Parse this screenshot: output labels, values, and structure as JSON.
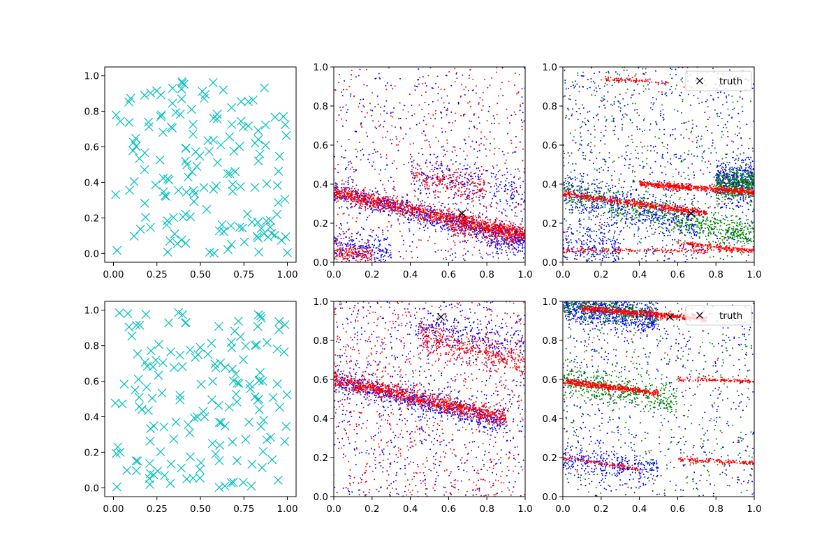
{
  "colors": {
    "cyan": "#00bfbf",
    "red": "#ff0000",
    "blue": "#0000ff",
    "green": "#008000",
    "truth": "#000000",
    "axes": "#000000",
    "background": "#ffffff"
  },
  "chart_data": [
    {
      "id": "top-left",
      "type": "scatter",
      "title": "",
      "xlabel": "",
      "ylabel": "",
      "xlim": [
        -0.05,
        1.05
      ],
      "ylim": [
        -0.05,
        1.05
      ],
      "xticks": [
        0.0,
        0.25,
        0.5,
        0.75,
        1.0
      ],
      "xtick_labels": [
        "0.00",
        "0.25",
        "0.50",
        "0.75",
        "1.00"
      ],
      "yticks": [
        0.0,
        0.2,
        0.4,
        0.6,
        0.8,
        1.0
      ],
      "ytick_labels": [
        "0.0",
        "0.2",
        "0.4",
        "0.6",
        "0.8",
        "1.0"
      ],
      "grid": false,
      "marker": "x",
      "series": [
        {
          "color": "cyan",
          "count": 160,
          "distribution": "uniform"
        }
      ]
    },
    {
      "id": "top-middle",
      "type": "scatter",
      "title": "",
      "xlabel": "",
      "ylabel": "",
      "xlim": [
        0,
        1
      ],
      "ylim": [
        0,
        1
      ],
      "xticks": [
        0.0,
        0.2,
        0.4,
        0.6,
        0.8,
        1.0
      ],
      "xtick_labels": [
        "0.0",
        "0.2",
        "0.4",
        "0.6",
        "0.8",
        "1.0"
      ],
      "yticks": [
        0.0,
        0.2,
        0.4,
        0.6,
        0.8,
        1.0
      ],
      "ytick_labels": [
        "0.0",
        "0.2",
        "0.4",
        "0.6",
        "0.8",
        "1.0"
      ],
      "grid": false,
      "marker": "dot",
      "truth_point": [
        0.67,
        0.25
      ],
      "series": [
        {
          "color": "blue",
          "bands": [
            {
              "x": [
                0.0,
                1.0
              ],
              "y0": 0.36,
              "slope": -0.25,
              "spread": 0.03,
              "count": 800
            },
            {
              "x": [
                0.0,
                0.3
              ],
              "y0": 0.08,
              "slope": -0.1,
              "spread": 0.05,
              "count": 250
            },
            {
              "x": [
                0.8,
                1.0
              ],
              "y0": 0.12,
              "slope": 0.0,
              "spread": 0.04,
              "count": 120
            },
            {
              "x": [
                0.4,
                1.0
              ],
              "y0": 0.55,
              "slope": -0.2,
              "spread": 0.06,
              "count": 250
            }
          ],
          "background_count": 400
        },
        {
          "color": "red",
          "bands": [
            {
              "x": [
                0.0,
                1.0
              ],
              "y0": 0.36,
              "slope": -0.22,
              "spread": 0.02,
              "count": 1100
            },
            {
              "x": [
                0.6,
                1.0
              ],
              "y0": 0.28,
              "slope": -0.15,
              "spread": 0.03,
              "count": 250
            },
            {
              "x": [
                0.0,
                0.2
              ],
              "y0": 0.05,
              "slope": -0.1,
              "spread": 0.03,
              "count": 150
            },
            {
              "x": [
                0.4,
                0.8
              ],
              "y0": 0.5,
              "slope": -0.15,
              "spread": 0.04,
              "count": 200
            }
          ],
          "background_count": 400
        }
      ]
    },
    {
      "id": "top-right",
      "type": "scatter",
      "title": "",
      "xlabel": "",
      "ylabel": "",
      "xlim": [
        0,
        1
      ],
      "ylim": [
        0,
        1
      ],
      "xticks": [
        0.0,
        0.2,
        0.4,
        0.6,
        0.8,
        1.0
      ],
      "xtick_labels": [
        "0.0",
        "0.2",
        "0.4",
        "0.6",
        "0.8",
        "1.0"
      ],
      "yticks": [
        0.0,
        0.2,
        0.4,
        0.6,
        0.8,
        1.0
      ],
      "ytick_labels": [
        "0.0",
        "0.2",
        "0.4",
        "0.6",
        "0.8",
        "1.0"
      ],
      "grid": false,
      "marker": "dot",
      "truth_point": [
        0.67,
        0.25
      ],
      "legend": {
        "label": "truth",
        "position": "upper right"
      },
      "series": [
        {
          "color": "blue",
          "bands": [
            {
              "x": [
                0.0,
                0.7
              ],
              "y0": 0.36,
              "slope": -0.25,
              "spread": 0.05,
              "count": 450
            },
            {
              "x": [
                0.8,
                1.0
              ],
              "y0": 0.42,
              "slope": 0.0,
              "spread": 0.05,
              "count": 350
            },
            {
              "x": [
                0.0,
                0.3
              ],
              "y0": 0.1,
              "slope": -0.1,
              "spread": 0.06,
              "count": 200
            }
          ],
          "background_count": 700
        },
        {
          "color": "green",
          "bands": [
            {
              "x": [
                0.0,
                1.0
              ],
              "y0": 0.36,
              "slope": -0.22,
              "spread": 0.04,
              "count": 500
            },
            {
              "x": [
                0.8,
                1.0
              ],
              "y0": 0.4,
              "slope": 0.0,
              "spread": 0.04,
              "count": 400
            },
            {
              "x": [
                0.6,
                1.0
              ],
              "y0": 0.25,
              "slope": -0.1,
              "spread": 0.03,
              "count": 150
            }
          ],
          "background_count": 400
        },
        {
          "color": "red",
          "bands": [
            {
              "x": [
                0.0,
                0.75
              ],
              "y0": 0.35,
              "slope": -0.13,
              "spread": 0.008,
              "count": 500
            },
            {
              "x": [
                0.4,
                1.0
              ],
              "y0": 0.43,
              "slope": -0.07,
              "spread": 0.008,
              "count": 550
            },
            {
              "x": [
                0.0,
                1.0
              ],
              "y0": 0.06,
              "slope": 0.0,
              "spread": 0.006,
              "count": 220
            },
            {
              "x": [
                0.6,
                1.0
              ],
              "y0": 0.16,
              "slope": -0.1,
              "spread": 0.006,
              "count": 150
            },
            {
              "x": [
                0.2,
                0.55
              ],
              "y0": 0.95,
              "slope": -0.05,
              "spread": 0.006,
              "count": 80
            }
          ],
          "background_count": 60
        }
      ]
    },
    {
      "id": "bottom-left",
      "type": "scatter",
      "title": "",
      "xlabel": "",
      "ylabel": "",
      "xlim": [
        -0.05,
        1.05
      ],
      "ylim": [
        -0.05,
        1.05
      ],
      "xticks": [
        0.0,
        0.25,
        0.5,
        0.75,
        1.0
      ],
      "xtick_labels": [
        "0.00",
        "0.25",
        "0.50",
        "0.75",
        "1.00"
      ],
      "yticks": [
        0.0,
        0.2,
        0.4,
        0.6,
        0.8,
        1.0
      ],
      "ytick_labels": [
        "0.0",
        "0.2",
        "0.4",
        "0.6",
        "0.8",
        "1.0"
      ],
      "grid": false,
      "marker": "x",
      "series": [
        {
          "color": "cyan",
          "count": 160,
          "distribution": "uniform"
        }
      ]
    },
    {
      "id": "bottom-middle",
      "type": "scatter",
      "title": "",
      "xlabel": "",
      "ylabel": "",
      "xlim": [
        0,
        1
      ],
      "ylim": [
        0,
        1
      ],
      "xticks": [
        0.0,
        0.2,
        0.4,
        0.6,
        0.8,
        1.0
      ],
      "xtick_labels": [
        "0.0",
        "0.2",
        "0.4",
        "0.6",
        "0.8",
        "1.0"
      ],
      "yticks": [
        0.0,
        0.2,
        0.4,
        0.6,
        0.8,
        1.0
      ],
      "ytick_labels": [
        "0.0",
        "0.2",
        "0.4",
        "0.6",
        "0.8",
        "1.0"
      ],
      "grid": false,
      "marker": "dot",
      "truth_point": [
        0.56,
        0.92
      ],
      "series": [
        {
          "color": "blue",
          "bands": [
            {
              "x": [
                0.0,
                0.9
              ],
              "y0": 0.6,
              "slope": -0.25,
              "spread": 0.03,
              "count": 700
            },
            {
              "x": [
                0.4,
                1.0
              ],
              "y0": 0.93,
              "slope": -0.15,
              "spread": 0.05,
              "count": 250
            }
          ],
          "background_count": 700
        },
        {
          "color": "red",
          "bands": [
            {
              "x": [
                0.0,
                0.9
              ],
              "y0": 0.6,
              "slope": -0.22,
              "spread": 0.02,
              "count": 950
            },
            {
              "x": [
                0.45,
                1.0
              ],
              "y0": 0.93,
              "slope": -0.25,
              "spread": 0.04,
              "count": 400
            }
          ],
          "background_count": 700
        }
      ]
    },
    {
      "id": "bottom-right",
      "type": "scatter",
      "title": "",
      "xlabel": "",
      "ylabel": "",
      "xlim": [
        0,
        1
      ],
      "ylim": [
        0,
        1
      ],
      "xticks": [
        0.0,
        0.2,
        0.4,
        0.6,
        0.8,
        1.0
      ],
      "xtick_labels": [
        "0.0",
        "0.2",
        "0.4",
        "0.6",
        "0.8",
        "1.0"
      ],
      "yticks": [
        0.0,
        0.2,
        0.4,
        0.6,
        0.8,
        1.0
      ],
      "ytick_labels": [
        "0.0",
        "0.2",
        "0.4",
        "0.6",
        "0.8",
        "1.0"
      ],
      "grid": false,
      "marker": "dot",
      "truth_point": [
        0.56,
        0.92
      ],
      "legend": {
        "label": "truth",
        "position": "upper right"
      },
      "series": [
        {
          "color": "blue",
          "bands": [
            {
              "x": [
                0.0,
                0.5
              ],
              "y0": 0.98,
              "slope": -0.15,
              "spread": 0.04,
              "count": 700
            },
            {
              "x": [
                0.0,
                0.5
              ],
              "y0": 0.2,
              "slope": -0.15,
              "spread": 0.04,
              "count": 300
            }
          ],
          "background_count": 500
        },
        {
          "color": "green",
          "bands": [
            {
              "x": [
                0.0,
                0.6
              ],
              "y0": 0.6,
              "slope": -0.2,
              "spread": 0.04,
              "count": 450
            },
            {
              "x": [
                0.0,
                0.5
              ],
              "y0": 0.98,
              "slope": -0.1,
              "spread": 0.03,
              "count": 350
            }
          ],
          "background_count": 350
        },
        {
          "color": "red",
          "bands": [
            {
              "x": [
                0.1,
                0.75
              ],
              "y0": 0.97,
              "slope": -0.08,
              "spread": 0.008,
              "count": 550
            },
            {
              "x": [
                0.0,
                0.5
              ],
              "y0": 0.59,
              "slope": -0.12,
              "spread": 0.008,
              "count": 400
            },
            {
              "x": [
                0.6,
                1.0
              ],
              "y0": 0.62,
              "slope": -0.03,
              "spread": 0.006,
              "count": 120
            },
            {
              "x": [
                0.6,
                1.0
              ],
              "y0": 0.22,
              "slope": -0.05,
              "spread": 0.006,
              "count": 150
            },
            {
              "x": [
                0.0,
                0.4
              ],
              "y0": 0.2,
              "slope": -0.15,
              "spread": 0.006,
              "count": 100
            }
          ],
          "background_count": 60
        }
      ]
    }
  ]
}
